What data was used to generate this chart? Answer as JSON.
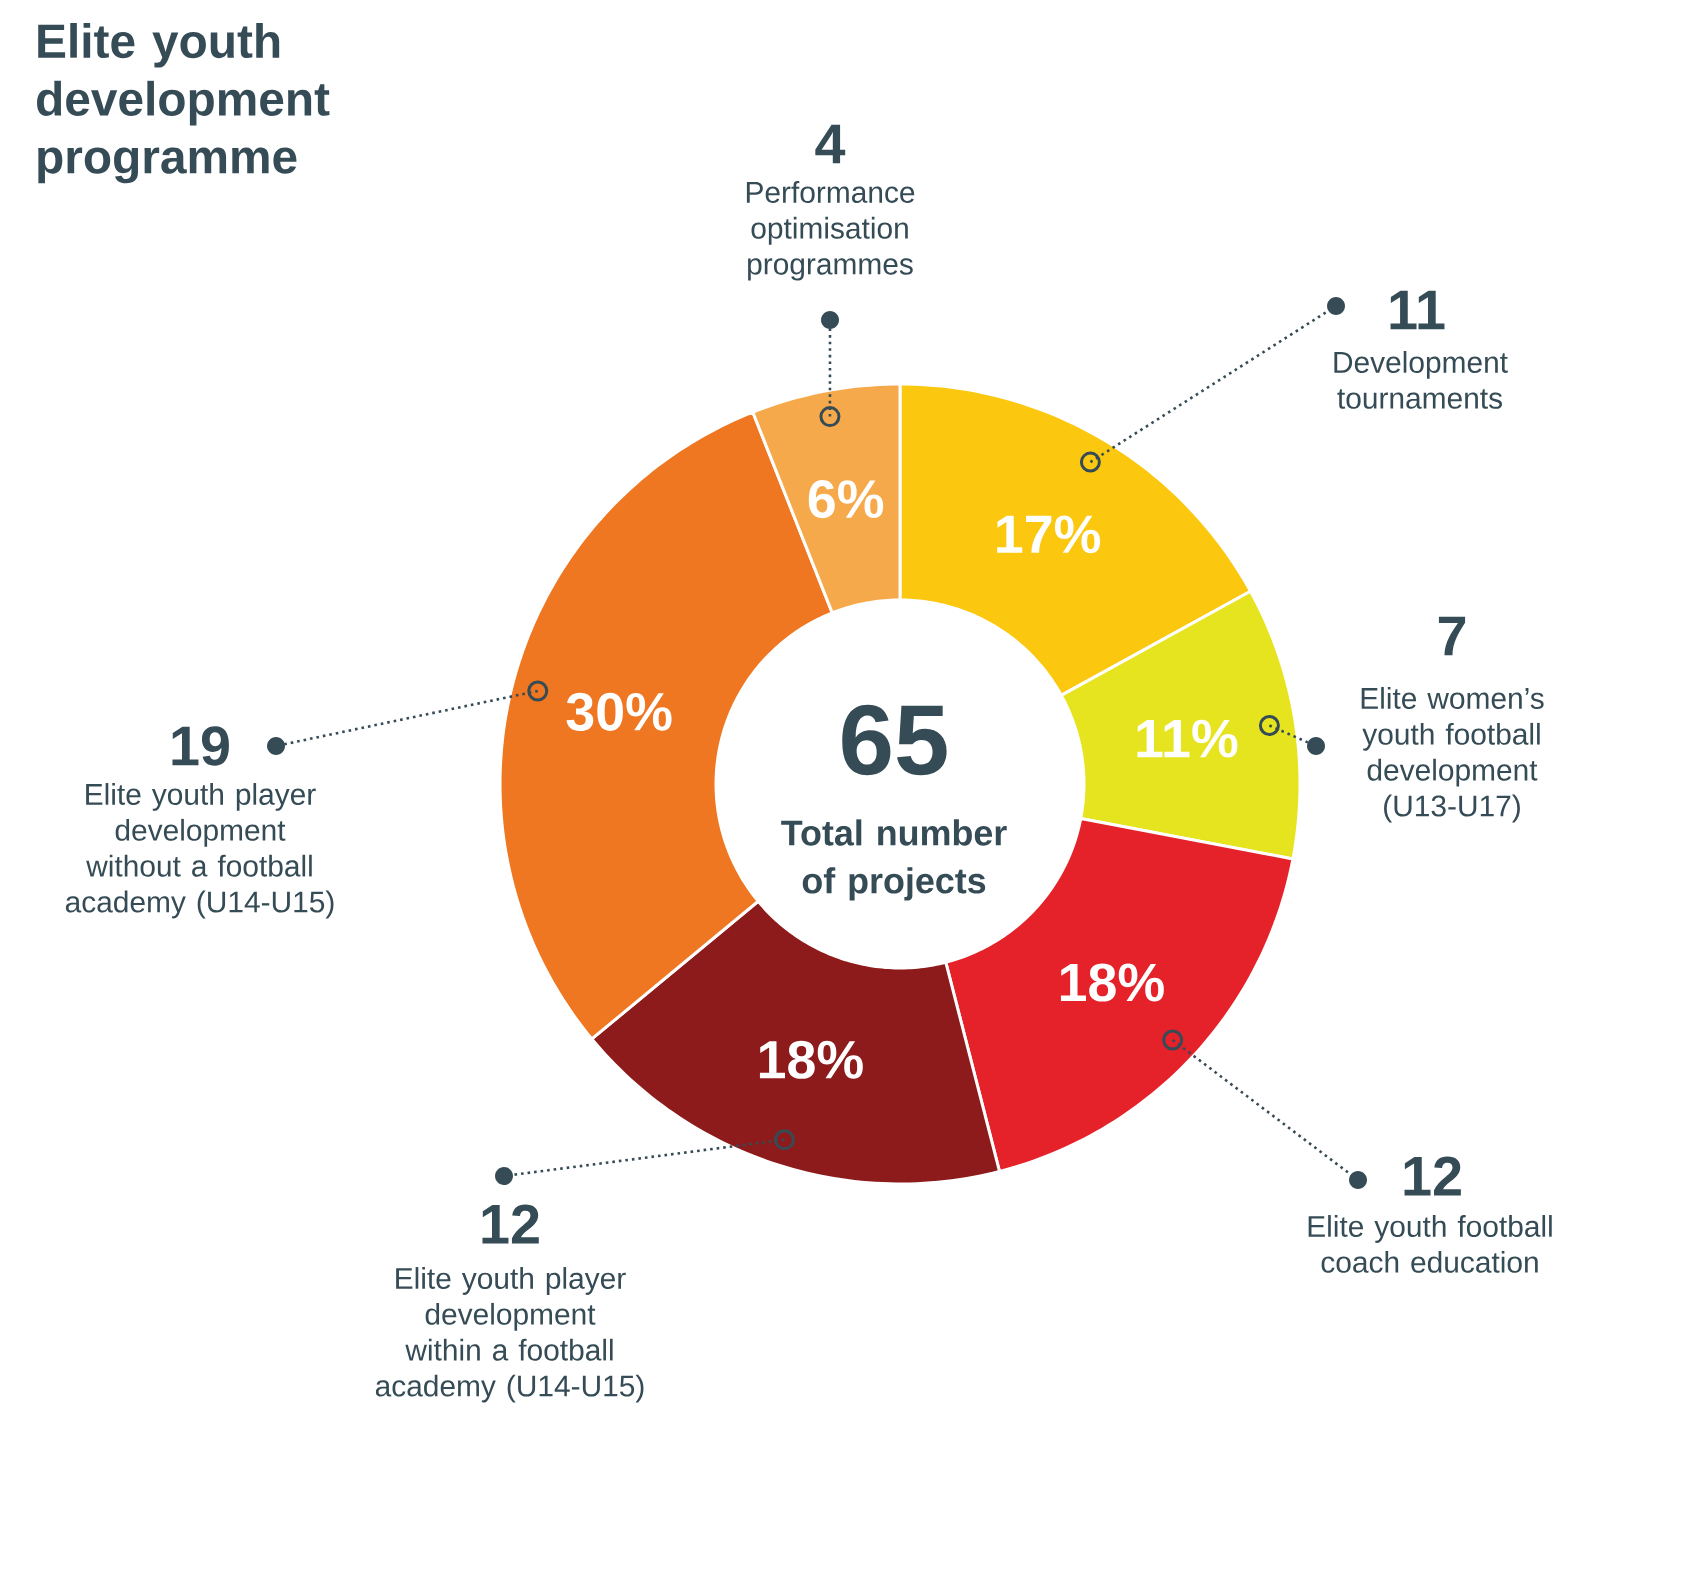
{
  "chart_data": {
    "type": "donut",
    "title": "Elite youth development programme",
    "categories": [
      "Development tournaments",
      "Elite women’s youth football development (U13-U17)",
      "Elite youth football coach education",
      "Elite youth player development within a football academy (U14-U15)",
      "Elite youth player development without a football academy (U14-U15)",
      "Performance optimisation programmes"
    ],
    "values": [
      17,
      11,
      18,
      18,
      30,
      6
    ],
    "colors": [
      "#fbc70f",
      "#e6e31f",
      "#e52229",
      "#8e1b1b",
      "#f07722",
      "#f6a94a"
    ],
    "value_labels": [
      "17%",
      "11%",
      "18%",
      "18%",
      "30%",
      "6%"
    ],
    "annotations": [
      "65",
      "Total number of projects",
      {
        "text": "11",
        "x": "Development tournaments"
      },
      {
        "text": "7",
        "x": "Elite women’s youth football development (U13-U17)"
      },
      {
        "text": "12",
        "x": "Elite youth football coach education"
      },
      {
        "text": "12",
        "x": "Elite youth player development within a football academy (U14-U15)"
      },
      {
        "text": "19",
        "x": "Elite youth player development without a football academy (U14-U15)"
      },
      {
        "text": "4",
        "x": "Performance optimisation programmes"
      }
    ]
  }
}
